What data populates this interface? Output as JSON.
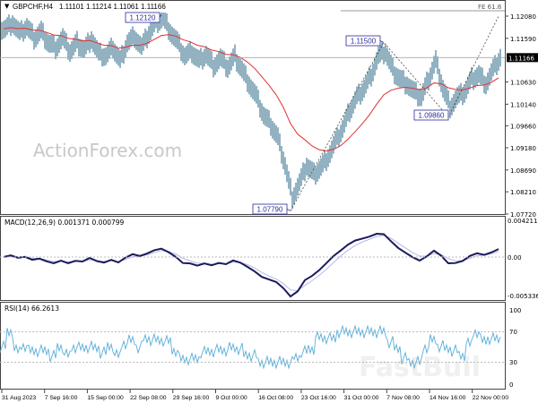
{
  "header": {
    "symbol": "GBPCHF,H4",
    "ohlc": "1.11101 1.11214 1.11061 1.11166"
  },
  "watermark": "ActionForex.com",
  "watermark2": "FastBull",
  "colors": {
    "bars": "#4a7f99",
    "ma": "#e03030",
    "macd": "#1a1a5e",
    "signal": "#b8b8e0",
    "rsi": "#5aaed8",
    "annotation": "#2a2a9a"
  },
  "chart_data": [
    {
      "type": "bar",
      "title": "GBPCHF,H4",
      "x_ticks": [
        "31 Aug 2023",
        "7 Sep 16:00",
        "15 Sep 00:00",
        "22 Sep 08:00",
        "29 Sep 16:00",
        "9 Oct 00:00",
        "16 Oct 08:00",
        "23 Oct 16:00",
        "31 Oct 00:00",
        "7 Nov 08:00",
        "14 Nov 16:00",
        "22 Nov 00:00"
      ],
      "y_ticks": [
        "1.12080",
        "1.11590",
        "1.10630",
        "1.10140",
        "1.09660",
        "1.09180",
        "1.08690",
        "1.08210",
        "1.07720"
      ],
      "ylim": [
        1.0772,
        1.1208
      ],
      "current_price": "1.11166",
      "closes": [
        1.118,
        1.1195,
        1.117,
        1.1185,
        1.116,
        1.1175,
        1.115,
        1.114,
        1.116,
        1.113,
        1.115,
        1.1135,
        1.116,
        1.1125,
        1.112,
        1.114,
        1.111,
        1.115,
        1.1165,
        1.114,
        1.117,
        1.1195,
        1.1205,
        1.1175,
        1.115,
        1.112,
        1.113,
        1.111,
        1.1125,
        1.11,
        1.1115,
        1.1095,
        1.112,
        1.109,
        1.106,
        1.103,
        1.099,
        1.097,
        1.094,
        1.088,
        1.081,
        1.084,
        1.088,
        1.086,
        1.0875,
        1.09,
        1.093,
        1.096,
        1.1,
        1.103,
        1.105,
        1.108,
        1.112,
        1.113,
        1.109,
        1.107,
        1.106,
        1.104,
        1.103,
        1.107,
        1.111,
        1.105,
        1.101,
        1.103,
        1.104,
        1.107,
        1.108,
        1.106,
        1.109,
        1.1117
      ],
      "annotations": [
        {
          "label": "1.12120",
          "price": 1.1212,
          "index": 22
        },
        {
          "label": "1.11500",
          "price": 1.115,
          "index": 53
        },
        {
          "label": "1.09860",
          "price": 1.0986,
          "index": 62
        },
        {
          "label": "1.07790",
          "price": 1.0779,
          "index": 40
        }
      ],
      "fe_label": "FE 61.8"
    },
    {
      "type": "line",
      "title": "MACD(12,26,9) 0.001371 0.000799",
      "y_ticks": [
        "0.004211",
        "0.00",
        "-0.005336"
      ],
      "ylim": [
        -0.005336,
        0.004211
      ]
    },
    {
      "type": "line",
      "title": "RSI(14) 66.2613",
      "y_ticks": [
        "100",
        "70",
        "30",
        "0"
      ],
      "ylim": [
        0,
        100
      ]
    }
  ]
}
